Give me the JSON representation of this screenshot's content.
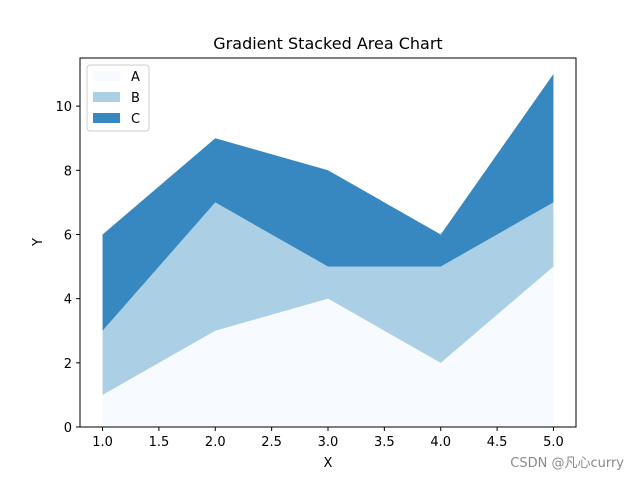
{
  "chart_data": {
    "type": "area",
    "stacked": true,
    "title": "Gradient Stacked Area Chart",
    "xlabel": "X",
    "ylabel": "Y",
    "x": [
      1.0,
      2.0,
      3.0,
      4.0,
      5.0
    ],
    "xlim": [
      0.8,
      5.2
    ],
    "ylim": [
      0,
      11.5
    ],
    "xticks": [
      1.0,
      1.5,
      2.0,
      2.5,
      3.0,
      3.5,
      4.0,
      4.5,
      5.0
    ],
    "xtick_labels": [
      "1.0",
      "1.5",
      "2.0",
      "2.5",
      "3.0",
      "3.5",
      "4.0",
      "4.5",
      "5.0"
    ],
    "yticks": [
      0,
      2,
      4,
      6,
      8,
      10
    ],
    "ytick_labels": [
      "0",
      "2",
      "4",
      "6",
      "8",
      "10"
    ],
    "grid": false,
    "legend_position": "top-left",
    "series": [
      {
        "name": "A",
        "values": [
          1,
          3,
          4,
          2,
          5
        ],
        "color": "#f7fbff"
      },
      {
        "name": "B",
        "values": [
          2,
          4,
          1,
          3,
          2
        ],
        "color": "#abd0e6"
      },
      {
        "name": "C",
        "values": [
          3,
          2,
          3,
          1,
          4
        ],
        "color": "#3787c0"
      }
    ]
  },
  "watermark": "CSDN @凡心curry"
}
